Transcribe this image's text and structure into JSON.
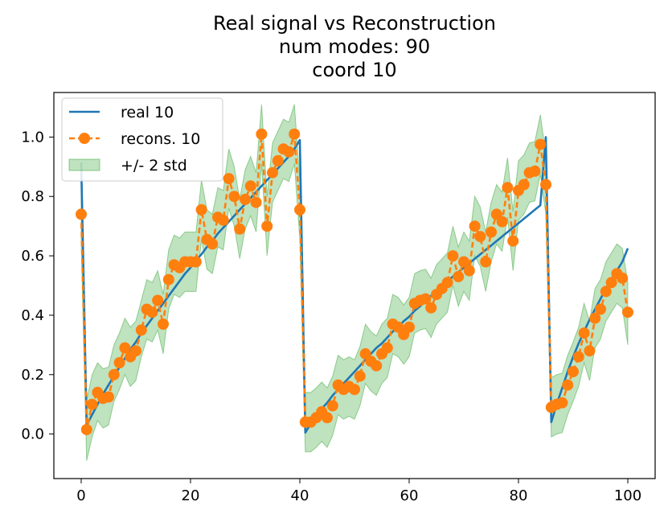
{
  "chart_data": {
    "type": "line",
    "title_lines": [
      "Real signal vs Reconstruction",
      "num modes: 90",
      "coord 10"
    ],
    "xlabel": "",
    "ylabel": "",
    "xlim": [
      -5,
      105
    ],
    "ylim": [
      -0.15,
      1.15
    ],
    "xticks": [
      0,
      20,
      40,
      60,
      80,
      100
    ],
    "yticks": [
      0.0,
      0.2,
      0.4,
      0.6,
      0.8,
      1.0
    ],
    "xtick_labels": [
      "0",
      "20",
      "40",
      "60",
      "80",
      "100"
    ],
    "ytick_labels": [
      "0.0",
      "0.2",
      "0.4",
      "0.6",
      "0.8",
      "1.0"
    ],
    "legend": {
      "position": "top-left",
      "entries": [
        "real 10",
        "recons. 10",
        "+/- 2 std"
      ]
    },
    "colors": {
      "real": "#1f77b4",
      "recons": "#ff7f0e",
      "band": "#2ca02c"
    },
    "series": [
      {
        "name": "real 10",
        "style": "solid",
        "x": [
          0,
          1,
          2,
          3,
          4,
          5,
          6,
          7,
          8,
          9,
          10,
          11,
          12,
          13,
          14,
          15,
          16,
          17,
          18,
          19,
          20,
          21,
          22,
          23,
          24,
          25,
          26,
          27,
          28,
          29,
          30,
          31,
          32,
          33,
          34,
          35,
          36,
          37,
          38,
          39,
          40,
          41,
          42,
          43,
          44,
          45,
          46,
          47,
          48,
          49,
          50,
          51,
          52,
          53,
          54,
          55,
          56,
          57,
          58,
          59,
          60,
          61,
          62,
          63,
          64,
          65,
          66,
          67,
          68,
          69,
          70,
          71,
          72,
          73,
          74,
          75,
          76,
          77,
          78,
          79,
          80,
          81,
          82,
          83,
          84,
          85,
          86,
          87,
          88,
          89,
          90,
          91,
          92,
          93,
          94,
          95,
          96,
          97,
          98,
          99,
          100
        ],
        "values": [
          0.915,
          0.03,
          0.065,
          0.1,
          0.135,
          0.165,
          0.195,
          0.225,
          0.255,
          0.285,
          0.31,
          0.34,
          0.365,
          0.39,
          0.415,
          0.44,
          0.465,
          0.49,
          0.515,
          0.54,
          0.56,
          0.585,
          0.605,
          0.63,
          0.65,
          0.675,
          0.695,
          0.715,
          0.735,
          0.755,
          0.775,
          0.795,
          0.815,
          0.835,
          0.855,
          0.875,
          0.895,
          0.915,
          0.935,
          0.96,
          0.99,
          0.005,
          0.035,
          0.06,
          0.085,
          0.105,
          0.13,
          0.15,
          0.17,
          0.19,
          0.21,
          0.23,
          0.25,
          0.27,
          0.29,
          0.305,
          0.325,
          0.345,
          0.36,
          0.38,
          0.395,
          0.415,
          0.43,
          0.45,
          0.465,
          0.48,
          0.5,
          0.515,
          0.53,
          0.545,
          0.56,
          0.575,
          0.59,
          0.605,
          0.62,
          0.635,
          0.65,
          0.665,
          0.68,
          0.695,
          0.71,
          0.725,
          0.74,
          0.755,
          0.77,
          1.0,
          0.04,
          0.1,
          0.155,
          0.21,
          0.26,
          0.305,
          0.345,
          0.385,
          0.42,
          0.455,
          0.49,
          0.52,
          0.55,
          0.58,
          0.625
        ]
      },
      {
        "name": "recons. 10",
        "style": "dashed-markers",
        "x": [
          0,
          1,
          2,
          3,
          4,
          5,
          6,
          7,
          8,
          9,
          10,
          11,
          12,
          13,
          14,
          15,
          16,
          17,
          18,
          19,
          20,
          21,
          22,
          23,
          24,
          25,
          26,
          27,
          28,
          29,
          30,
          31,
          32,
          33,
          34,
          35,
          36,
          37,
          38,
          39,
          40,
          41,
          42,
          43,
          44,
          45,
          46,
          47,
          48,
          49,
          50,
          51,
          52,
          53,
          54,
          55,
          56,
          57,
          58,
          59,
          60,
          61,
          62,
          63,
          64,
          65,
          66,
          67,
          68,
          69,
          70,
          71,
          72,
          73,
          74,
          75,
          76,
          77,
          78,
          79,
          80,
          81,
          82,
          83,
          84,
          85,
          86,
          87,
          88,
          89,
          90,
          91,
          92,
          93,
          94,
          95,
          96,
          97,
          98,
          99,
          100
        ],
        "values": [
          0.74,
          0.015,
          0.1,
          0.14,
          0.12,
          0.125,
          0.2,
          0.24,
          0.29,
          0.26,
          0.28,
          0.35,
          0.42,
          0.41,
          0.45,
          0.37,
          0.52,
          0.57,
          0.56,
          0.58,
          0.58,
          0.58,
          0.755,
          0.655,
          0.64,
          0.73,
          0.72,
          0.86,
          0.8,
          0.69,
          0.79,
          0.835,
          0.78,
          1.01,
          0.7,
          0.88,
          0.92,
          0.96,
          0.95,
          1.01,
          0.755,
          0.04,
          0.04,
          0.055,
          0.075,
          0.055,
          0.095,
          0.165,
          0.15,
          0.16,
          0.15,
          0.195,
          0.27,
          0.245,
          0.23,
          0.27,
          0.29,
          0.37,
          0.36,
          0.335,
          0.36,
          0.44,
          0.45,
          0.455,
          0.425,
          0.47,
          0.49,
          0.51,
          0.6,
          0.53,
          0.58,
          0.55,
          0.7,
          0.665,
          0.58,
          0.68,
          0.74,
          0.715,
          0.83,
          0.65,
          0.82,
          0.84,
          0.88,
          0.885,
          0.975,
          0.84,
          0.09,
          0.1,
          0.105,
          0.165,
          0.21,
          0.26,
          0.34,
          0.28,
          0.39,
          0.42,
          0.48,
          0.51,
          0.54,
          0.525,
          0.41
        ]
      },
      {
        "name": "+/- 2 std",
        "style": "band",
        "x": [
          0,
          1,
          2,
          3,
          4,
          5,
          6,
          7,
          8,
          9,
          10,
          11,
          12,
          13,
          14,
          15,
          16,
          17,
          18,
          19,
          20,
          21,
          22,
          23,
          24,
          25,
          26,
          27,
          28,
          29,
          30,
          31,
          32,
          33,
          34,
          35,
          36,
          37,
          38,
          39,
          40,
          41,
          42,
          43,
          44,
          45,
          46,
          47,
          48,
          49,
          50,
          51,
          52,
          53,
          54,
          55,
          56,
          57,
          58,
          59,
          60,
          61,
          62,
          63,
          64,
          65,
          66,
          67,
          68,
          69,
          70,
          71,
          72,
          73,
          74,
          75,
          76,
          77,
          78,
          79,
          80,
          81,
          82,
          83,
          84,
          85,
          86,
          87,
          88,
          89,
          90,
          91,
          92,
          93,
          94,
          95,
          96,
          97,
          98,
          99,
          100
        ],
        "lower": [
          0.64,
          -0.09,
          -0.01,
          0.045,
          0.02,
          0.03,
          0.11,
          0.15,
          0.2,
          0.16,
          0.18,
          0.26,
          0.32,
          0.31,
          0.35,
          0.27,
          0.42,
          0.47,
          0.46,
          0.48,
          0.48,
          0.48,
          0.655,
          0.555,
          0.54,
          0.63,
          0.62,
          0.76,
          0.7,
          0.59,
          0.69,
          0.735,
          0.68,
          0.91,
          0.6,
          0.78,
          0.82,
          0.86,
          0.85,
          0.91,
          0.655,
          -0.06,
          -0.06,
          -0.045,
          -0.025,
          -0.045,
          -0.005,
          0.065,
          0.05,
          0.06,
          0.05,
          0.095,
          0.17,
          0.145,
          0.13,
          0.17,
          0.19,
          0.27,
          0.26,
          0.235,
          0.26,
          0.34,
          0.35,
          0.355,
          0.325,
          0.37,
          0.39,
          0.41,
          0.5,
          0.43,
          0.48,
          0.45,
          0.6,
          0.565,
          0.48,
          0.58,
          0.64,
          0.615,
          0.73,
          0.55,
          0.72,
          0.74,
          0.78,
          0.785,
          0.875,
          0.74,
          -0.01,
          0.0,
          0.005,
          0.065,
          0.11,
          0.16,
          0.24,
          0.18,
          0.29,
          0.32,
          0.38,
          0.41,
          0.44,
          0.425,
          0.3
        ],
        "upper": [
          0.84,
          0.115,
          0.2,
          0.24,
          0.22,
          0.225,
          0.3,
          0.34,
          0.39,
          0.36,
          0.38,
          0.45,
          0.52,
          0.51,
          0.55,
          0.47,
          0.62,
          0.67,
          0.66,
          0.68,
          0.68,
          0.68,
          0.855,
          0.755,
          0.74,
          0.83,
          0.82,
          0.96,
          0.9,
          0.79,
          0.89,
          0.935,
          0.88,
          1.11,
          0.8,
          0.98,
          1.02,
          1.06,
          1.05,
          1.11,
          0.855,
          0.14,
          0.14,
          0.155,
          0.175,
          0.155,
          0.195,
          0.265,
          0.25,
          0.26,
          0.25,
          0.295,
          0.37,
          0.345,
          0.33,
          0.37,
          0.39,
          0.47,
          0.46,
          0.435,
          0.46,
          0.54,
          0.55,
          0.555,
          0.525,
          0.57,
          0.59,
          0.61,
          0.7,
          0.63,
          0.68,
          0.65,
          0.8,
          0.765,
          0.68,
          0.78,
          0.84,
          0.815,
          0.93,
          0.75,
          0.92,
          0.94,
          0.98,
          0.985,
          1.075,
          0.94,
          0.19,
          0.2,
          0.205,
          0.265,
          0.31,
          0.36,
          0.44,
          0.38,
          0.49,
          0.52,
          0.58,
          0.61,
          0.64,
          0.625,
          0.51
        ]
      }
    ]
  }
}
